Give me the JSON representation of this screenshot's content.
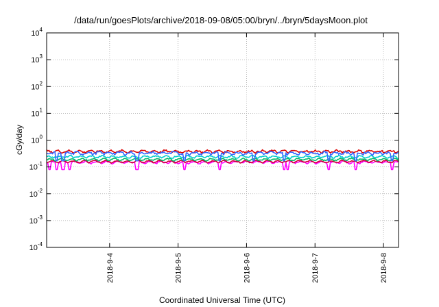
{
  "chart_data": {
    "type": "line",
    "title": "/data/run/goesPlots/archive/2018-09-08/05:00/bryn/../bryn/5daysMoon.plot",
    "xlabel": "Coordinated Universal Time (UTC)",
    "ylabel": "cGy/day",
    "yscale": "log",
    "ylim": [
      0.0001,
      10000
    ],
    "xlim": [
      3.08,
      8.22
    ],
    "grid": true,
    "y_ticks": [
      {
        "base": "10",
        "exp": "-4",
        "value": 0.0001
      },
      {
        "base": "10",
        "exp": "-3",
        "value": 0.001
      },
      {
        "base": "10",
        "exp": "-2",
        "value": 0.01
      },
      {
        "base": "10",
        "exp": "-1",
        "value": 0.1
      },
      {
        "base": "10",
        "exp": "0",
        "value": 1
      },
      {
        "base": "10",
        "exp": "1",
        "value": 10
      },
      {
        "base": "10",
        "exp": "2",
        "value": 100
      },
      {
        "base": "10",
        "exp": "3",
        "value": 1000
      },
      {
        "base": "10",
        "exp": "4",
        "value": 10000
      }
    ],
    "x_ticks": [
      {
        "label": "2018-9-4",
        "value": 4
      },
      {
        "label": "2018-9-5",
        "value": 5
      },
      {
        "label": "2018-9-6",
        "value": 6
      },
      {
        "label": "2018-9-7",
        "value": 7
      },
      {
        "label": "2018-9-8",
        "value": 8
      }
    ],
    "series": [
      {
        "color": "#ff00ff",
        "base": 0.15,
        "dips": [
          3.12,
          3.22,
          3.32,
          3.42,
          4.4,
          5.1,
          5.6,
          6.55,
          6.6,
          7.2,
          7.6,
          8.12
        ],
        "dip_depth": 0.08,
        "jitter": 0.07
      },
      {
        "color": "#cc0033",
        "base": 0.16,
        "dips": [],
        "dip_depth": 0,
        "jitter": 0.05
      },
      {
        "color": "#00bb66",
        "base": 0.19,
        "dips": [],
        "dip_depth": 0,
        "jitter": 0.05
      },
      {
        "color": "#00cccc",
        "base": 0.24,
        "dips": [],
        "dip_depth": 0,
        "jitter": 0.06
      },
      {
        "color": "#dd0000",
        "base": 0.38,
        "dips": [],
        "dip_depth": 0,
        "jitter": 0.08
      },
      {
        "color": "#3366ff",
        "base": 0.33,
        "dips": [
          3.22,
          3.32,
          4.4,
          5.1,
          5.6,
          6.1,
          6.55,
          7.2,
          7.6,
          8.12
        ],
        "dip_depth": 0.17,
        "jitter": 0.1
      }
    ]
  }
}
